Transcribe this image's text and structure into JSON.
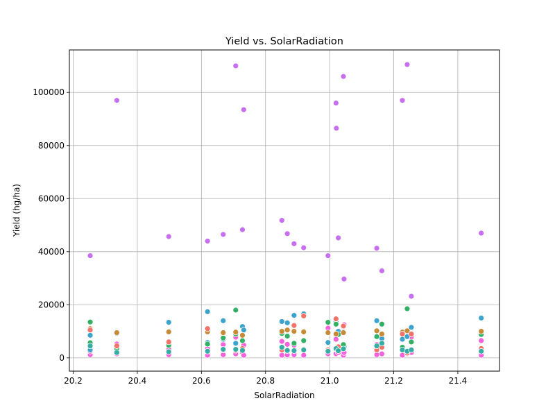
{
  "chart_data": {
    "type": "scatter",
    "title": "Yield vs. SolarRadiation",
    "xlabel": "SolarRadiation",
    "ylabel": "Yield (hg/ha)",
    "xlim": [
      20.188,
      21.53
    ],
    "ylim": [
      -5000,
      116000
    ],
    "xticks": [
      "20.2",
      "20.4",
      "20.6",
      "20.8",
      "21.0",
      "21.2",
      "21.4"
    ],
    "yticks": [
      "0",
      "20000",
      "40000",
      "60000",
      "80000",
      "100000"
    ],
    "xtick_values": [
      20.2,
      20.4,
      20.6,
      20.8,
      21.0,
      21.2,
      21.4
    ],
    "ytick_values": [
      0,
      20000,
      40000,
      60000,
      80000,
      100000
    ],
    "grid": true,
    "legend": "none",
    "colors": [
      "#c76ff0",
      "#f561dd",
      "#3ba3cc",
      "#32b165",
      "#c78a36",
      "#f07268",
      "#36ada4"
    ],
    "series": [
      {
        "color": "#c76ff0",
        "x": [
          20.253,
          20.336,
          20.498,
          20.619,
          20.668,
          20.707,
          20.728,
          20.732,
          20.851,
          20.868,
          20.889,
          20.919,
          20.995,
          21.02,
          21.021,
          21.027,
          21.043,
          21.045,
          21.147,
          21.163,
          21.227,
          21.242,
          21.255,
          21.473
        ],
        "y": [
          38500,
          97000,
          45700,
          44000,
          46500,
          110000,
          48300,
          93500,
          51800,
          46800,
          43000,
          41500,
          38500,
          96000,
          86500,
          45200,
          106000,
          29700,
          41300,
          32800,
          97000,
          110500,
          23200,
          47000
        ]
      },
      {
        "color": "#f561dd",
        "x": [
          20.253,
          20.253,
          20.336,
          20.336,
          20.498,
          20.498,
          20.619,
          20.619,
          20.668,
          20.668,
          20.707,
          20.707,
          20.728,
          20.732,
          20.732,
          20.851,
          20.851,
          20.868,
          20.868,
          20.889,
          20.889,
          20.919,
          20.919,
          20.995,
          20.995,
          21.02,
          21.02,
          21.027,
          21.043,
          21.045,
          21.045,
          21.147,
          21.147,
          21.163,
          21.163,
          21.227,
          21.227,
          21.242,
          21.255,
          21.255,
          21.473,
          21.473
        ],
        "y": [
          1200,
          2500,
          1500,
          5200,
          1200,
          3300,
          1000,
          3500,
          1200,
          5000,
          1500,
          7800,
          2100,
          1000,
          4800,
          1000,
          6200,
          1100,
          5100,
          1200,
          4800,
          1000,
          6300,
          1500,
          11200,
          1500,
          7000,
          2000,
          1000,
          2000,
          12500,
          1200,
          5000,
          1500,
          8500,
          1000,
          7000,
          1500,
          2000,
          7800,
          1000,
          6500
        ]
      },
      {
        "color": "#3ba3cc",
        "x": [
          20.253,
          20.253,
          20.336,
          20.336,
          20.498,
          20.619,
          20.619,
          20.668,
          20.668,
          20.707,
          20.728,
          20.732,
          20.851,
          20.868,
          20.889,
          20.919,
          20.995,
          21.02,
          21.027,
          21.043,
          21.045,
          21.147,
          21.163,
          21.227,
          21.242,
          21.255,
          21.473
        ],
        "y": [
          3000,
          8500,
          2800,
          9200,
          13400,
          17400,
          5800,
          14000,
          7000,
          5500,
          11800,
          10500,
          13700,
          13200,
          16000,
          16600,
          5800,
          13500,
          10000,
          11700,
          4200,
          14000,
          7300,
          7000,
          8000,
          11500,
          15000
        ]
      },
      {
        "color": "#32b165",
        "x": [
          20.253,
          20.253,
          20.336,
          20.498,
          20.619,
          20.668,
          20.707,
          20.707,
          20.728,
          20.851,
          20.868,
          20.889,
          20.919,
          20.995,
          21.02,
          21.027,
          21.043,
          21.147,
          21.163,
          21.227,
          21.242,
          21.255,
          21.473
        ],
        "y": [
          13500,
          5700,
          3500,
          4700,
          5200,
          7500,
          18000,
          9000,
          6500,
          9200,
          8200,
          5500,
          6500,
          13400,
          12700,
          8800,
          5000,
          8000,
          12700,
          4000,
          18500,
          6000,
          8800
        ]
      },
      {
        "color": "#c78a36",
        "x": [
          20.253,
          20.336,
          20.498,
          20.619,
          20.668,
          20.707,
          20.728,
          20.851,
          20.868,
          20.889,
          20.919,
          20.995,
          21.02,
          21.043,
          21.147,
          21.163,
          21.227,
          21.242,
          21.255,
          21.473
        ],
        "y": [
          11000,
          9500,
          9800,
          9800,
          9500,
          9700,
          8500,
          10000,
          10500,
          10000,
          9800,
          9500,
          9000,
          9500,
          10200,
          9000,
          9700,
          10200,
          9000,
          10000
        ]
      },
      {
        "color": "#f07268",
        "x": [
          20.253,
          20.336,
          20.498,
          20.619,
          20.668,
          20.707,
          20.728,
          20.851,
          20.868,
          20.889,
          20.919,
          20.995,
          21.02,
          21.027,
          21.043,
          21.147,
          21.163,
          21.227,
          21.242,
          21.255,
          21.473
        ],
        "y": [
          10500,
          4500,
          6000,
          11000,
          3000,
          2800,
          3500,
          3000,
          2700,
          12200,
          15800,
          3000,
          14700,
          4200,
          12000,
          3000,
          4000,
          9000,
          1800,
          9000,
          3500
        ]
      },
      {
        "color": "#36ada4",
        "x": [
          20.253,
          20.336,
          20.498,
          20.619,
          20.668,
          20.707,
          20.728,
          20.851,
          20.868,
          20.889,
          20.919,
          20.995,
          21.02,
          21.027,
          21.043,
          21.147,
          21.163,
          21.227,
          21.242,
          21.255,
          21.473
        ],
        "y": [
          4500,
          2000,
          2300,
          2500,
          3200,
          3200,
          2800,
          4000,
          2800,
          2700,
          3000,
          2500,
          3500,
          2700,
          3400,
          4500,
          5500,
          3000,
          2500,
          3000,
          2500
        ]
      }
    ]
  }
}
